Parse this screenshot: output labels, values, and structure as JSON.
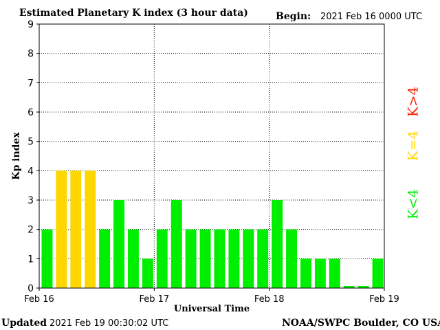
{
  "header": {
    "title": "Estimated Planetary K index (3 hour data)",
    "begin_label": "Begin:",
    "begin_value": "2021 Feb 16 0000 UTC"
  },
  "footer": {
    "updated_label": "Updated",
    "updated_value": "2021 Feb 19 00:30:02 UTC",
    "credit": "NOAA/SWPC Boulder, CO USA"
  },
  "legend": {
    "items": [
      {
        "label": "K<4",
        "color": "#00ee00"
      },
      {
        "label": "K=4",
        "color": "#ffd700"
      },
      {
        "label": "K>4",
        "color": "#ff2200"
      }
    ]
  },
  "chart_data": {
    "type": "bar",
    "title": "Estimated Planetary K index (3 hour data)",
    "xlabel": "Universal Time",
    "ylabel": "Kp index",
    "ylim": [
      0,
      9
    ],
    "yticks": [
      0,
      1,
      2,
      3,
      4,
      5,
      6,
      7,
      8,
      9
    ],
    "x_tick_labels": [
      "Feb 16",
      "Feb 17",
      "Feb 18",
      "Feb 19"
    ],
    "grid": true,
    "bar_interval_hours": 3,
    "values": [
      2,
      4,
      4,
      4,
      2,
      3,
      2,
      1,
      2,
      3,
      2,
      2,
      2,
      2,
      2,
      2,
      3,
      2,
      1,
      1,
      1,
      0.07,
      0.07,
      1
    ],
    "colors": {
      "below_4": "#00ee00",
      "equal_4": "#ffd700",
      "above_4": "#ff2200"
    }
  }
}
